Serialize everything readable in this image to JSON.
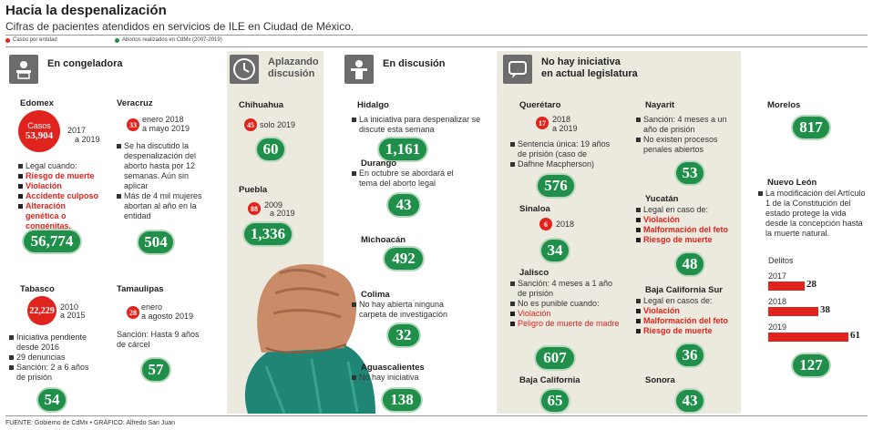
{
  "header": {
    "title": "Hacia la despenalización",
    "subtitle": "Cifras de pacientes atendidos en servicios de ILE en Ciudad de México.",
    "legend_cases": "Casos por entidad",
    "legend_abortions": "Abortos realizados en CdMx (2007-2019)"
  },
  "colors": {
    "green": "#1f8f4a",
    "red": "#e0231c",
    "beige": "#ece9df"
  },
  "categories": {
    "congeladora": "En congeladora",
    "aplazando_1": "Aplazando",
    "aplazando_2": "discusión",
    "discusion": "En discusión",
    "no_iniciativa_1": "No hay iniciativa",
    "no_iniciativa_2": "en actual legislatura"
  },
  "icons": {
    "congeladora": "desk-person-icon",
    "aplazando": "clock-icon",
    "discusion": "lectern-icon",
    "no_iniciativa": "speech-bubble-icon"
  },
  "edomex": {
    "name": "Edomex",
    "cases_label": "Casos",
    "cases": "53,904",
    "years_1": "2017",
    "years_2": "a 2019",
    "legal": "Legal cuando:",
    "r1": "Riesgo de muerte",
    "r2": "Violación",
    "r3": "Accidente culposo",
    "r4": "Alteración genética o congénitas.",
    "total": "56,774"
  },
  "veracruz": {
    "name": "Veracruz",
    "cases": "33",
    "years_1": "enero 2018",
    "years_2": "a mayo 2019",
    "b1": "Se ha discutido la despenalización del aborto hasta por 12 semanas. Aún sin aplicar",
    "b2": "Más de 4 mil mujeres abortan al año en la entidad",
    "total": "504"
  },
  "tabasco": {
    "name": "Tabasco",
    "cases": "22,229",
    "years_1": "2010",
    "years_2": "a 2015",
    "b1": "Iniciativa pendiente desde 2016",
    "b2": "29 denuncias",
    "b3": "Sanción: 2 a 6 años de prisión",
    "total": "54"
  },
  "tamaulipas": {
    "name": "Tamaulipas",
    "cases": "28",
    "years_1": "enero",
    "years_2": "a agosto 2019",
    "text": "Sanción: Hasta 9 años de cárcel",
    "total": "57"
  },
  "chihuahua": {
    "name": "Chihuahua",
    "cases": "45",
    "years": "solo 2019",
    "total": "60"
  },
  "puebla": {
    "name": "Puebla",
    "cases": "88",
    "years_1": "2009",
    "years_2": "a 2019",
    "total": "1,336"
  },
  "hidalgo": {
    "name": "Hidalgo",
    "text": "La iniciativa para despenalizar se discute esta semana",
    "total": "1,161"
  },
  "durango": {
    "name": "Durango",
    "text": "En octubre se abordará el tema del aborto legal",
    "total": "43"
  },
  "michoacan": {
    "name": "Michoacán",
    "total": "492"
  },
  "colima": {
    "name": "Colima",
    "text": "No hay abierta ninguna carpeta de investigación",
    "total": "32"
  },
  "aguascalientes": {
    "name": "Aguascalientes",
    "text": "No hay iniciativa",
    "total": "138"
  },
  "queretaro": {
    "name": "Querétaro",
    "cases": "17",
    "years_1": "2018",
    "years_2": "a 2019",
    "b1": "Sentencia única: 19 años de prisión (caso de",
    "b2": "Dafhne Macpherson)",
    "total": "576"
  },
  "sinaloa": {
    "name": "Sinaloa",
    "cases": "6",
    "years": "2018",
    "total": "34"
  },
  "jalisco": {
    "name": "Jalisco",
    "b1": "Sanción: 4 meses a 1 año de prisión",
    "b2": "No es punible cuando:",
    "r1": "Violación",
    "r2": "Peligro de muerte de madre",
    "total": "607"
  },
  "baja_california": {
    "name": "Baja California",
    "total": "65"
  },
  "nayarit": {
    "name": "Nayarit",
    "b1": "Sanción: 4 meses a un año de prisión",
    "b2": "No existen procesos penales abiertos",
    "total": "53"
  },
  "yucatan": {
    "name": "Yucatán",
    "legal": "Legal en caso de:",
    "r1": "Violación",
    "r2": "Malformación del feto",
    "r3": "Riesgo de muerte",
    "total": "48"
  },
  "bcs": {
    "name": "Baja California Sur",
    "legal": "Legal en casos de:",
    "r1": "Violación",
    "r2": "Malformación del feto",
    "r3": "Riesgo de muerte",
    "total": "36"
  },
  "sonora": {
    "name": "Sonora",
    "total": "43"
  },
  "morelos": {
    "name": "Morelos",
    "total": "817"
  },
  "nuevo_leon": {
    "name": "Nuevo León",
    "text": "La modificación del Artículo 1 de la Constitución del estado protege la vida desde la concepción hasta la muerte natural.",
    "delitos_label": "Delitos",
    "total": "127"
  },
  "chart_data": {
    "type": "bar",
    "title": "Delitos",
    "categories": [
      "2017",
      "2018",
      "2019"
    ],
    "values": [
      28,
      38,
      61
    ]
  },
  "footer": "FUENTE: Gobierno de CdMx • GRÁFICO: Alfredo San Juan"
}
